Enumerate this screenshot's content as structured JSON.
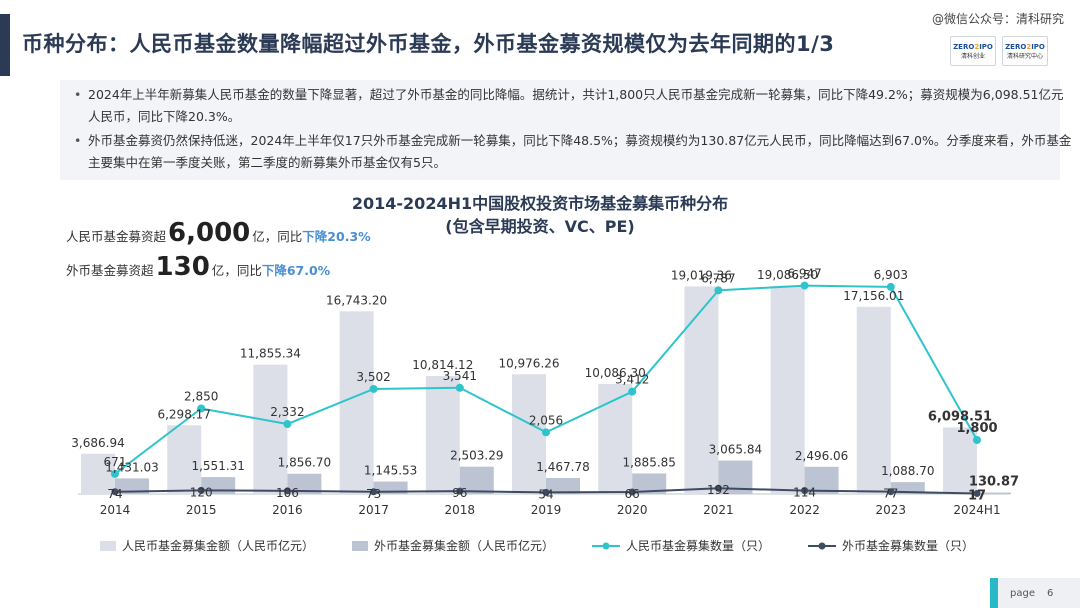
{
  "header": {
    "title": "币种分布：人民币基金数量降幅超过外币基金，外币基金募资规模仅为去年同期的1/3",
    "watermark": "@微信公众号：清科研究",
    "logo1_top": "ZERO2IPO",
    "logo1_bottom": "清科创业",
    "logo2_top": "ZERO2IPO",
    "logo2_bottom": "清科研究中心"
  },
  "bullets": [
    "2024年上半年新募集人民币基金的数量下降显著，超过了外币基金的同比降幅。据统计，共计1,800只人民币基金完成新一轮募集，同比下降49.2%；募资规模为6,098.51亿元人民币，同比下降20.3%。",
    "外币基金募资仍然保持低迷，2024年上半年仅17只外币基金完成新一轮募集，同比下降48.5%；募资规模约为130.87亿元人民币，同比降幅达到67.0%。分季度来看，外币基金主要集中在第一季度关账，第二季度的新募集外币基金仅有5只。"
  ],
  "annotations": {
    "rmb_prefix": "人民币基金募资超",
    "rmb_big": "6,000",
    "rmb_unit": "亿",
    "rmb_yoy": "，同比",
    "rmb_yoy_val": "下降20.3%",
    "fx_prefix": "外币基金募资超",
    "fx_big": "130",
    "fx_unit": "亿",
    "fx_yoy": "，同比",
    "fx_yoy_val": "下降67.0%"
  },
  "page": {
    "label": "page",
    "number": "6"
  },
  "colors": {
    "rmb_bar": "#dcdfe8",
    "fx_bar": "#bcc4d4",
    "rmb_line": "#2ec4cc",
    "fx_line": "#3d4b63",
    "title": "#2b3a55",
    "highlight_blue": "#4a8fd4"
  },
  "chart_data": {
    "type": "bar",
    "title": "2014-2024H1中国股权投资市场基金募集币种分布",
    "subtitle": "(包含早期投资、VC、PE)",
    "categories": [
      "2014",
      "2015",
      "2016",
      "2017",
      "2018",
      "2019",
      "2020",
      "2021",
      "2022",
      "2023",
      "2024H1"
    ],
    "series": [
      {
        "name": "人民币基金募集金额（人民币亿元）",
        "kind": "bar",
        "axis": "left",
        "values": [
          3686.94,
          6298.17,
          11855.34,
          16743.2,
          10814.12,
          10976.26,
          10086.3,
          19019.36,
          19086.5,
          17156.01,
          6098.51
        ],
        "labels": [
          "3,686.94",
          "6,298.17",
          "11,855.34",
          "16,743.20",
          "10,814.12",
          "10,976.26",
          "10,086.30",
          "19,019.36",
          "19,086.50",
          "17,156.01",
          "6,098.51"
        ]
      },
      {
        "name": "外币基金募集金额（人民币亿元）",
        "kind": "bar",
        "axis": "left",
        "values": [
          1431.03,
          1551.31,
          1856.7,
          1145.53,
          2503.29,
          1467.78,
          1885.85,
          3065.84,
          2496.06,
          1088.7,
          130.87
        ],
        "labels": [
          "1,431.03",
          "1,551.31",
          "1,856.70",
          "1,145.53",
          "2,503.29",
          "1,467.78",
          "1,885.85",
          "3,065.84",
          "2,496.06",
          "1,088.70",
          "130.87"
        ]
      },
      {
        "name": "人民币基金募集数量（只）",
        "kind": "line",
        "axis": "right",
        "values": [
          671,
          2850,
          2332,
          3502,
          3541,
          2056,
          3412,
          6787,
          6947,
          6903,
          1800
        ],
        "labels": [
          "671",
          "2,850",
          "2,332",
          "3,502",
          "3,541",
          "2,056",
          "3,412",
          "6,787",
          "6,947",
          "6,903",
          "1,800"
        ]
      },
      {
        "name": "外币基金募集数量（只）",
        "kind": "line",
        "axis": "right",
        "values": [
          74,
          120,
          106,
          73,
          96,
          54,
          66,
          192,
          114,
          77,
          17
        ],
        "labels": [
          "74",
          "120",
          "106",
          "73",
          "96",
          "54",
          "66",
          "192",
          "114",
          "77",
          "17"
        ]
      }
    ],
    "ylim_left": [
      0,
      22000
    ],
    "ylim_right": [
      0,
      8000
    ],
    "grid": false,
    "legend_position": "bottom"
  }
}
